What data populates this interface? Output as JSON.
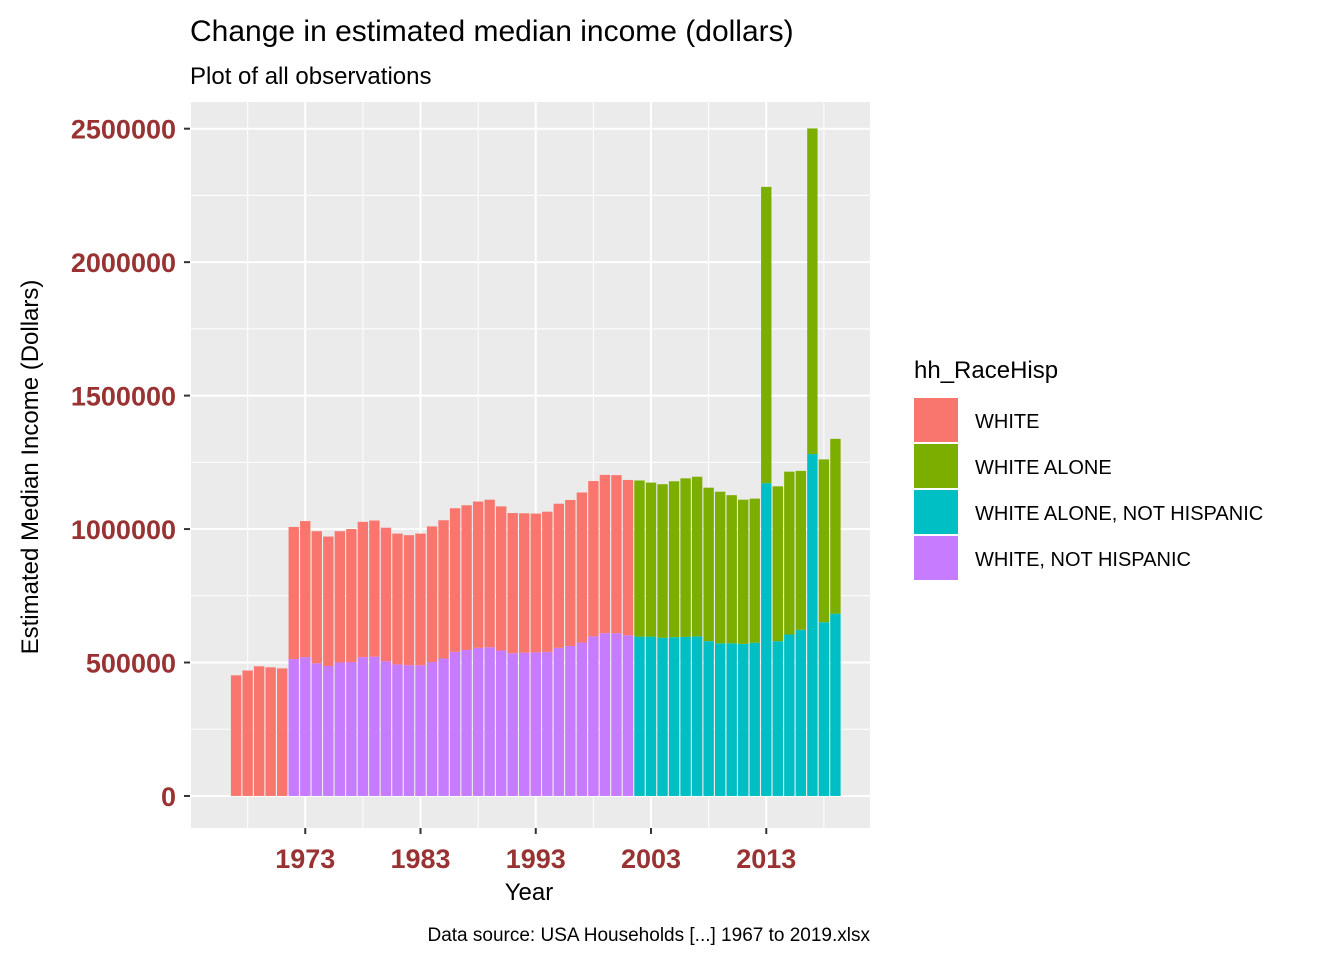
{
  "chart_data": {
    "type": "bar",
    "stacked": true,
    "title": "Change in estimated median income (dollars)",
    "subtitle": "Plot of all observations",
    "xlabel": "Year",
    "ylabel": "Estimated Median Income (Dollars)",
    "caption": "Data source: USA Households [...] 1967 to 2019.xlsx",
    "xlim": [
      1963,
      2022
    ],
    "ylim": [
      -120000,
      2600000
    ],
    "x_ticks": [
      1973,
      1983,
      1993,
      2003,
      2013
    ],
    "y_ticks": [
      0,
      500000,
      1000000,
      1500000,
      2000000,
      2500000
    ],
    "y_tick_labels": [
      "0",
      "500000",
      "1000000",
      "1500000",
      "2000000",
      "2500000"
    ],
    "grid": true,
    "panel_background": "#ebebeb",
    "legend": {
      "title": "hh_RaceHisp",
      "position": "right"
    },
    "series": [
      {
        "name": "WHITE",
        "color": "#F8766D",
        "points": [
          [
            1967,
            452000
          ],
          [
            1968,
            470000
          ],
          [
            1969,
            486000
          ],
          [
            1970,
            482000
          ],
          [
            1971,
            478000
          ],
          [
            1972,
            495000
          ],
          [
            1973,
            510000
          ],
          [
            1974,
            495000
          ],
          [
            1975,
            485000
          ],
          [
            1976,
            492000
          ],
          [
            1977,
            498000
          ],
          [
            1978,
            507000
          ],
          [
            1979,
            510000
          ],
          [
            1980,
            500000
          ],
          [
            1981,
            490000
          ],
          [
            1982,
            487000
          ],
          [
            1983,
            493000
          ],
          [
            1984,
            508000
          ],
          [
            1985,
            518000
          ],
          [
            1986,
            538000
          ],
          [
            1987,
            542000
          ],
          [
            1988,
            548000
          ],
          [
            1989,
            553000
          ],
          [
            1990,
            540000
          ],
          [
            1991,
            525000
          ],
          [
            1992,
            522000
          ],
          [
            1993,
            520000
          ],
          [
            1994,
            525000
          ],
          [
            1995,
            540000
          ],
          [
            1996,
            547000
          ],
          [
            1997,
            562000
          ],
          [
            1998,
            582000
          ],
          [
            1999,
            593000
          ],
          [
            2000,
            592000
          ],
          [
            2001,
            582000
          ]
        ]
      },
      {
        "name": "WHITE ALONE",
        "color": "#7CAE00",
        "points": [
          [
            2002,
            585000
          ],
          [
            2003,
            577000
          ],
          [
            2004,
            575000
          ],
          [
            2005,
            584000
          ],
          [
            2006,
            594000
          ],
          [
            2007,
            598000
          ],
          [
            2008,
            575000
          ],
          [
            2009,
            568000
          ],
          [
            2010,
            555000
          ],
          [
            2011,
            540000
          ],
          [
            2012,
            540000
          ],
          [
            2013,
            1110000
          ],
          [
            2014,
            580000
          ],
          [
            2015,
            610000
          ],
          [
            2016,
            595000
          ],
          [
            2017,
            1220000
          ],
          [
            2018,
            610000
          ],
          [
            2019,
            655000
          ]
        ]
      },
      {
        "name": "WHITE ALONE, NOT HISPANIC",
        "color": "#00BFC4",
        "points": [
          [
            2002,
            597000
          ],
          [
            2003,
            597000
          ],
          [
            2004,
            593000
          ],
          [
            2005,
            595000
          ],
          [
            2006,
            596000
          ],
          [
            2007,
            598000
          ],
          [
            2008,
            580000
          ],
          [
            2009,
            572000
          ],
          [
            2010,
            572000
          ],
          [
            2011,
            570000
          ],
          [
            2012,
            574000
          ],
          [
            2013,
            1172000
          ],
          [
            2014,
            580000
          ],
          [
            2015,
            605000
          ],
          [
            2016,
            623000
          ],
          [
            2017,
            1281000
          ],
          [
            2018,
            651000
          ],
          [
            2019,
            683000
          ]
        ]
      },
      {
        "name": "WHITE, NOT HISPANIC",
        "color": "#C77CFF",
        "points": [
          [
            1972,
            513000
          ],
          [
            1973,
            520000
          ],
          [
            1974,
            497000
          ],
          [
            1975,
            487000
          ],
          [
            1976,
            500000
          ],
          [
            1977,
            502000
          ],
          [
            1978,
            520000
          ],
          [
            1979,
            522000
          ],
          [
            1980,
            505000
          ],
          [
            1981,
            493000
          ],
          [
            1982,
            490000
          ],
          [
            1983,
            490000
          ],
          [
            1984,
            502000
          ],
          [
            1985,
            515000
          ],
          [
            1986,
            540000
          ],
          [
            1987,
            547000
          ],
          [
            1988,
            555000
          ],
          [
            1989,
            557000
          ],
          [
            1990,
            545000
          ],
          [
            1991,
            535000
          ],
          [
            1992,
            537000
          ],
          [
            1993,
            538000
          ],
          [
            1994,
            540000
          ],
          [
            1995,
            555000
          ],
          [
            1996,
            562000
          ],
          [
            1997,
            575000
          ],
          [
            1998,
            598000
          ],
          [
            1999,
            610000
          ],
          [
            2000,
            610000
          ],
          [
            2001,
            602000
          ]
        ]
      }
    ]
  }
}
